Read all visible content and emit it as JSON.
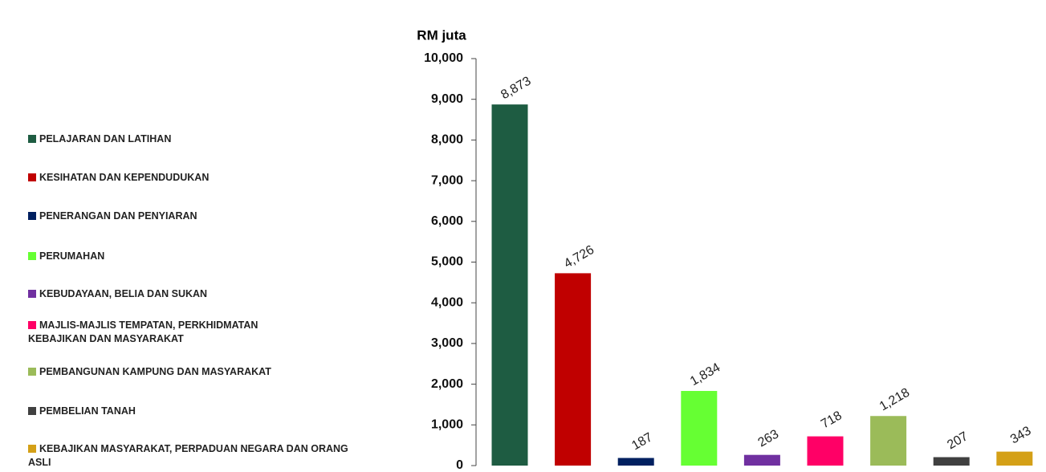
{
  "chart_data": {
    "type": "bar",
    "y_axis_title": "RM juta",
    "categories": [
      "PELAJARAN DAN LATIHAN",
      "KESIHATAN DAN KEPENDUDUKAN",
      "PENERANGAN DAN PENYIARAN",
      "PERUMAHAN",
      "KEBUDAYAAN, BELIA DAN SUKAN",
      "MAJLIS-MAJLIS TEMPATAN, PERKHIDMATAN KEBAJIKAN DAN MASYARAKAT",
      "PEMBANGUNAN KAMPUNG DAN MASYARAKAT",
      "PEMBELIAN TANAH",
      "KEBAJIKAN MASYARAKAT, PERPADUAN NEGARA DAN ORANG ASLI"
    ],
    "values": [
      8873,
      4726,
      187,
      1834,
      263,
      718,
      1218,
      207,
      343
    ],
    "value_labels": [
      "8,873",
      "4,726",
      "187",
      "1,834",
      "263",
      "718",
      "1,218",
      "207",
      "343"
    ],
    "colors": [
      "#1e5c42",
      "#c00000",
      "#002060",
      "#66ff33",
      "#7030a0",
      "#ff0066",
      "#9bbb59",
      "#404040",
      "#d4a017"
    ],
    "ylim": [
      0,
      10000
    ],
    "yticks": [
      0,
      {
        "value": 1000,
        "label": "1,000"
      },
      {
        "value": 2000,
        "label": "2,000"
      },
      {
        "value": 3000,
        "label": "3,000"
      },
      {
        "value": 4000,
        "label": "4,000"
      },
      {
        "value": 5000,
        "label": "5,000"
      },
      {
        "value": 6000,
        "label": "6,000"
      },
      {
        "value": 7000,
        "label": "7,000"
      },
      {
        "value": 8000,
        "label": "8,000"
      },
      {
        "value": 9000,
        "label": "9,000"
      },
      {
        "value": 10000,
        "label": "10,000"
      }
    ],
    "legend": "left"
  }
}
